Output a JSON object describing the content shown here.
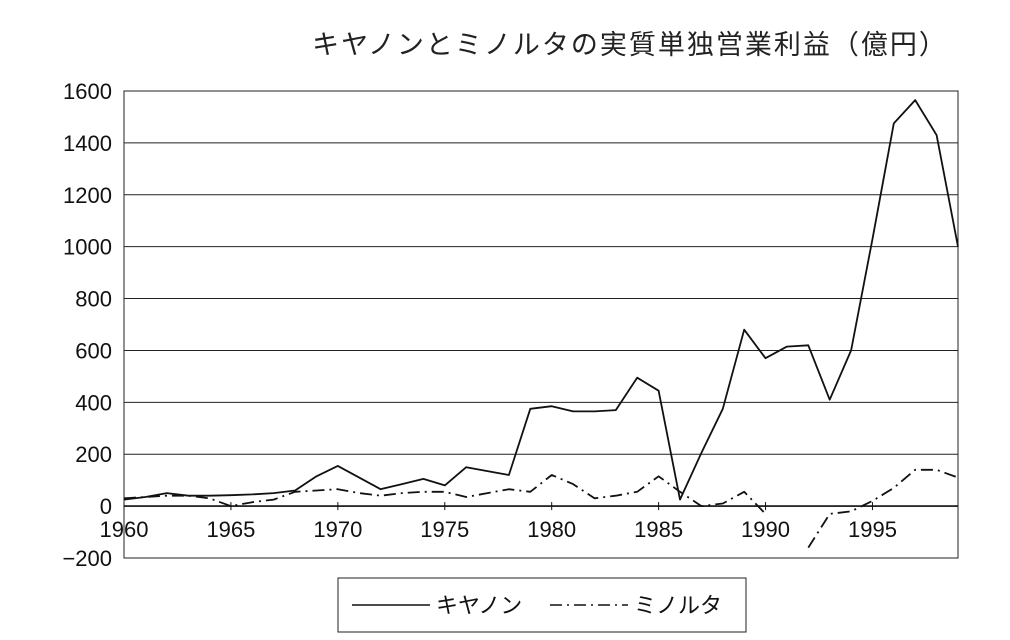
{
  "chart_data": {
    "type": "line",
    "title": "キヤノンとミノルタの実質単独営業利益（億円）",
    "xlabel": "",
    "ylabel": "",
    "xlim": [
      1960,
      1999
    ],
    "ylim": [
      -200,
      1600
    ],
    "xticks": [
      1960,
      1965,
      1970,
      1975,
      1980,
      1985,
      1990,
      1995
    ],
    "yticks": [
      -200,
      0,
      200,
      400,
      600,
      800,
      1000,
      1200,
      1400,
      1600
    ],
    "ytick_labels": [
      "−200",
      "0",
      "200",
      "400",
      "600",
      "800",
      "1000",
      "1200",
      "1400",
      "1600"
    ],
    "grid": "horizontal",
    "legend_position": "bottom",
    "series": [
      {
        "name": "キヤノン",
        "style": "solid",
        "color": "#111111",
        "x": [
          1960,
          1961,
          1962,
          1963,
          1964,
          1965,
          1966,
          1967,
          1968,
          1969,
          1970,
          1971,
          1972,
          1973,
          1974,
          1975,
          1976,
          1977,
          1978,
          1979,
          1980,
          1981,
          1982,
          1983,
          1984,
          1985,
          1986,
          1987,
          1988,
          1989,
          1990,
          1991,
          1992,
          1993,
          1994,
          1995,
          1996,
          1997,
          1998,
          1999
        ],
        "y": [
          25,
          35,
          50,
          40,
          40,
          42,
          45,
          50,
          60,
          115,
          155,
          110,
          65,
          85,
          105,
          80,
          150,
          135,
          120,
          375,
          385,
          365,
          365,
          370,
          495,
          445,
          25,
          205,
          375,
          680,
          570,
          615,
          620,
          410,
          600,
          1030,
          1475,
          1565,
          1430,
          1000
        ]
      },
      {
        "name": "ミノルタ",
        "style": "dash-dot",
        "color": "#111111",
        "x": [
          1960,
          1961,
          1962,
          1963,
          1964,
          1965,
          1966,
          1967,
          1968,
          1969,
          1970,
          1971,
          1972,
          1973,
          1974,
          1975,
          1976,
          1977,
          1978,
          1979,
          1980,
          1981,
          1982,
          1983,
          1984,
          1985,
          1986,
          1987,
          1988,
          1989,
          1990,
          null,
          1992,
          1993,
          1994,
          1995,
          1996,
          1997,
          1998,
          1999
        ],
        "y": [
          30,
          35,
          40,
          40,
          30,
          0,
          15,
          25,
          55,
          60,
          65,
          50,
          40,
          50,
          55,
          55,
          35,
          50,
          65,
          55,
          120,
          85,
          30,
          40,
          55,
          115,
          55,
          0,
          10,
          55,
          -30,
          null,
          -160,
          -30,
          -20,
          20,
          70,
          140,
          140,
          110
        ]
      }
    ]
  }
}
